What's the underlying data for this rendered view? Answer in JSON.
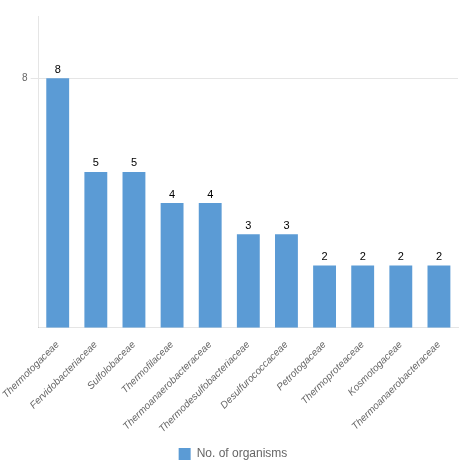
{
  "chart_data": {
    "type": "bar",
    "categories": [
      "Thermotogaceae",
      "Fervidobacteriaceae",
      "Sulfolobaceae",
      "Thermofilaceae",
      "Thermoanaerobacteraceae",
      "Thermodesulfobacteriaceae",
      "Desulfurococcaceae",
      "Petrotogaceae",
      "Thermoproteaceae",
      "Kosmotogaceae",
      "Thermoanaerobacteraceae"
    ],
    "series": [
      {
        "name": "No. of organisms",
        "color": "#5b9bd5",
        "values": [
          8,
          5,
          5,
          4,
          4,
          3,
          3,
          2,
          2,
          2,
          2
        ]
      }
    ],
    "ylim": [
      0,
      10
    ],
    "yticks": [
      8
    ],
    "grid": true,
    "legend": "bottom",
    "data_labels": true
  }
}
